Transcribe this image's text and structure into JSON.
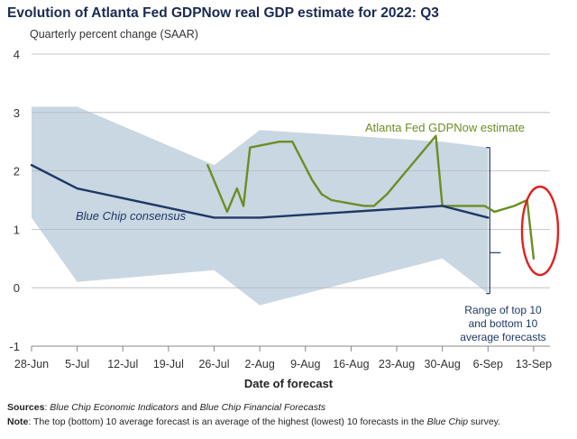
{
  "title": "Evolution of Atlanta Fed GDPNow real GDP estimate for 2022: Q3",
  "subtitle": "Quarterly percent change (SAAR)",
  "footer": {
    "sources_label": "Sources",
    "sources_text_1": ": ",
    "sources_italic_1": "Blue Chip Economic Indicators",
    "sources_text_2": " and ",
    "sources_italic_2": "Blue Chip Financial Forecasts",
    "note_label": "Note",
    "note_text_1": ": The top (bottom) 10 average forecast is an average of the highest (lowest) 10 forecasts in the ",
    "note_italic": "Blue Chip",
    "note_text_2": " survey."
  },
  "chart_data": {
    "type": "line",
    "xlabel": "Date of forecast",
    "ylabel": "",
    "ylim": [
      -1,
      4
    ],
    "yticks": [
      -1,
      0,
      1,
      2,
      3,
      4
    ],
    "x_tick_labels": [
      "28-Jun",
      "5-Jul",
      "12-Jul",
      "19-Jul",
      "26-Jul",
      "2-Aug",
      "9-Aug",
      "16-Aug",
      "23-Aug",
      "30-Aug",
      "6-Sep",
      "13-Sep"
    ],
    "x_tick_days": [
      0,
      7,
      14,
      21,
      28,
      35,
      42,
      49,
      56,
      63,
      70,
      77
    ],
    "grid": "horizontal",
    "series": [
      {
        "name": "Atlanta Fed GDPNow estimate",
        "color": "#6b8e23",
        "points": [
          [
            27,
            2.1
          ],
          [
            30,
            1.3
          ],
          [
            31.5,
            1.7
          ],
          [
            32.5,
            1.4
          ],
          [
            33.5,
            2.4
          ],
          [
            38,
            2.5
          ],
          [
            40,
            2.5
          ],
          [
            43,
            1.85
          ],
          [
            44.5,
            1.6
          ],
          [
            46,
            1.5
          ],
          [
            51,
            1.4
          ],
          [
            52.5,
            1.4
          ],
          [
            54.5,
            1.6
          ],
          [
            62,
            2.6
          ],
          [
            63,
            1.4
          ],
          [
            68,
            1.4
          ],
          [
            69.5,
            1.4
          ],
          [
            71,
            1.3
          ],
          [
            74,
            1.4
          ],
          [
            76,
            1.5
          ],
          [
            77,
            0.5
          ]
        ]
      },
      {
        "name": "Blue Chip consensus",
        "color": "#1f3864",
        "points": [
          [
            0,
            2.1
          ],
          [
            7,
            1.7
          ],
          [
            28,
            1.2
          ],
          [
            35,
            1.2
          ],
          [
            63,
            1.4
          ],
          [
            70,
            1.2
          ]
        ]
      }
    ],
    "band": {
      "name": "Range of top 10 and bottom 10 average forecasts",
      "color": "#c9d7e3",
      "upper": [
        [
          0,
          3.1
        ],
        [
          7,
          3.1
        ],
        [
          28,
          2.1
        ],
        [
          35,
          2.7
        ],
        [
          63,
          2.5
        ],
        [
          70,
          2.4
        ]
      ],
      "lower": [
        [
          0,
          1.2
        ],
        [
          7,
          0.1
        ],
        [
          28,
          0.3
        ],
        [
          35,
          -0.3
        ],
        [
          63,
          0.5
        ],
        [
          70,
          -0.1
        ]
      ]
    },
    "annotations": [
      {
        "text": "Atlanta Fed GDPNow estimate",
        "color": "#6b8e23"
      },
      {
        "text": "Blue Chip consensus",
        "color": "#1f3864"
      },
      {
        "text_lines": [
          "Range of top 10",
          "and bottom 10",
          "average forecasts"
        ],
        "color": "#1f3864"
      }
    ],
    "highlight": {
      "shape": "ellipse",
      "color": "#e02020",
      "around": "final GDPNow estimate drop near 13-Sep"
    }
  }
}
